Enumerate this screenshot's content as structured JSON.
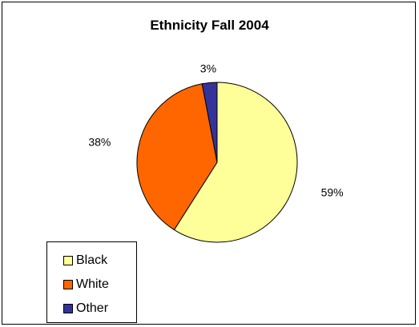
{
  "chart_data": {
    "type": "pie",
    "title": "Ethnicity Fall 2004",
    "categories": [
      "Black",
      "White",
      "Other"
    ],
    "values": [
      59,
      38,
      3
    ],
    "data_labels": [
      "59%",
      "38%",
      "3%"
    ],
    "colors": [
      "#ffff99",
      "#ff6600",
      "#333399"
    ],
    "legend_position": "bottom-left",
    "start_angle": "12 o'clock",
    "direction": "clockwise"
  }
}
